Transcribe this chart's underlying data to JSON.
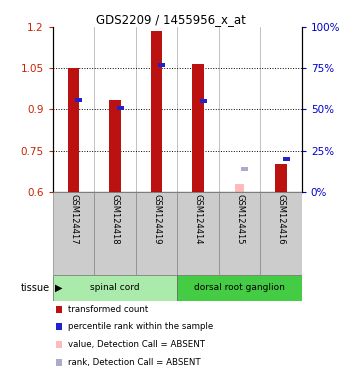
{
  "title": "GDS2209 / 1455956_x_at",
  "samples": [
    "GSM124417",
    "GSM124418",
    "GSM124419",
    "GSM124414",
    "GSM124415",
    "GSM124416"
  ],
  "red_values": [
    1.05,
    0.935,
    1.185,
    1.065,
    null,
    0.7
  ],
  "blue_values": [
    0.935,
    0.905,
    1.06,
    0.93,
    null,
    0.72
  ],
  "pink_values": [
    null,
    null,
    null,
    null,
    0.63,
    null
  ],
  "lightblue_values": [
    null,
    null,
    null,
    null,
    0.685,
    null
  ],
  "ylim": [
    0.6,
    1.2
  ],
  "y2lim": [
    0,
    100
  ],
  "yticks": [
    0.6,
    0.75,
    0.9,
    1.05,
    1.2
  ],
  "y2ticks": [
    0,
    25,
    50,
    75,
    100
  ],
  "ytick_labels": [
    "0.6",
    "0.75",
    "0.9",
    "1.05",
    "1.2"
  ],
  "y2tick_labels": [
    "0%",
    "25%",
    "50%",
    "75%",
    "100%"
  ],
  "groups": [
    {
      "label": "spinal cord",
      "indices": [
        0,
        1,
        2
      ],
      "color": "#aaeaaa"
    },
    {
      "label": "dorsal root ganglion",
      "indices": [
        3,
        4,
        5
      ],
      "color": "#44cc44"
    }
  ],
  "tissue_label": "tissue",
  "bar_width": 0.28,
  "red_color": "#bb1111",
  "blue_color": "#2222cc",
  "pink_color": "#ffbbbb",
  "lightblue_color": "#aaaacc",
  "bar_base": 0.6,
  "legend_items": [
    {
      "color": "#bb1111",
      "label": "transformed count"
    },
    {
      "color": "#2222cc",
      "label": "percentile rank within the sample"
    },
    {
      "color": "#ffbbbb",
      "label": "value, Detection Call = ABSENT"
    },
    {
      "color": "#aaaacc",
      "label": "rank, Detection Call = ABSENT"
    }
  ],
  "label_color_left": "#cc2200",
  "label_color_right": "#0000cc",
  "gray_bg": "#cccccc"
}
